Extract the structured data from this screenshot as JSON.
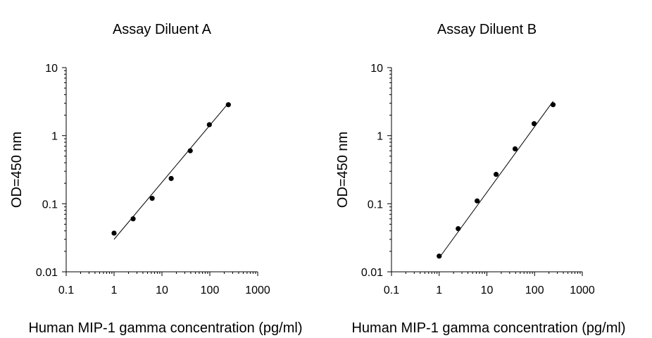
{
  "chart_data": [
    {
      "type": "scatter",
      "title": "Assay Diluent A",
      "xlabel": "Human MIP-1 gamma concentration (pg/ml)",
      "ylabel": "OD=450 nm",
      "x_scale": "log",
      "y_scale": "log",
      "xlim": [
        0.1,
        1000
      ],
      "ylim": [
        0.01,
        10
      ],
      "x_ticks": [
        "0.1",
        "1",
        "10",
        "100",
        "1000"
      ],
      "y_ticks": [
        "0.01",
        "0.1",
        "1",
        "10"
      ],
      "grid": false,
      "series": [
        {
          "x": [
            1,
            2.5,
            6.25,
            15.6,
            39,
            97.7,
            244
          ],
          "y": [
            0.037,
            0.06,
            0.12,
            0.235,
            0.6,
            1.45,
            2.85
          ]
        }
      ],
      "fit_line": {
        "x": [
          1,
          244
        ],
        "y": [
          0.03,
          3.0
        ]
      },
      "colors": {
        "points": "#000000",
        "line": "#000000"
      }
    },
    {
      "type": "scatter",
      "title": "Assay Diluent B",
      "xlabel": "Human MIP-1 gamma concentration (pg/ml)",
      "ylabel": "OD=450 nm",
      "x_scale": "log",
      "y_scale": "log",
      "xlim": [
        0.1,
        1000
      ],
      "ylim": [
        0.01,
        10
      ],
      "x_ticks": [
        "0.1",
        "1",
        "10",
        "100",
        "1000"
      ],
      "y_ticks": [
        "0.01",
        "0.1",
        "1",
        "10"
      ],
      "grid": false,
      "series": [
        {
          "x": [
            1,
            2.5,
            6.25,
            15.6,
            39,
            97.7,
            244
          ],
          "y": [
            0.017,
            0.043,
            0.11,
            0.27,
            0.64,
            1.5,
            2.85
          ]
        }
      ],
      "fit_line": {
        "x": [
          1,
          244
        ],
        "y": [
          0.016,
          3.2
        ]
      },
      "colors": {
        "points": "#000000",
        "line": "#000000"
      }
    }
  ]
}
